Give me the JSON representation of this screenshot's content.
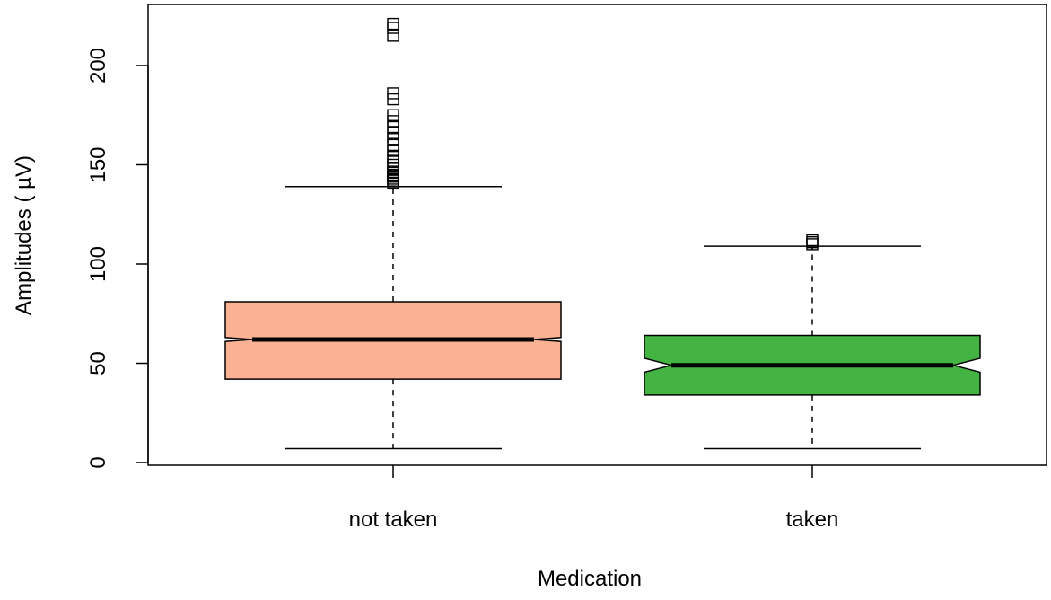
{
  "chart_data": {
    "type": "boxplot",
    "title": "",
    "xlabel": "Medication",
    "ylabel": "Amplitudes ( µV)",
    "ylim": [
      -2,
      225
    ],
    "yticks": [
      0,
      50,
      100,
      150,
      200
    ],
    "notched": true,
    "grid": false,
    "legend": "none",
    "categories": [
      "not taken",
      "taken"
    ],
    "boxes": [
      {
        "category": "not taken",
        "color": "#FBB194",
        "whisker_low": 7,
        "q1": 42,
        "median": 62,
        "q3": 81,
        "whisker_high": 139,
        "notch_low": 61,
        "notch_high": 63,
        "outliers": [
          141,
          142,
          143,
          144,
          145,
          146,
          148,
          150,
          152,
          154,
          157,
          160,
          163,
          166,
          169,
          172,
          175,
          183,
          186,
          215,
          219,
          221
        ]
      },
      {
        "category": "taken",
        "color": "#43B443",
        "whisker_low": 7,
        "q1": 34,
        "median": 49,
        "q3": 64,
        "whisker_high": 109,
        "notch_low": 45.5,
        "notch_high": 52.5,
        "outliers": [
          110,
          111,
          112
        ]
      }
    ]
  }
}
